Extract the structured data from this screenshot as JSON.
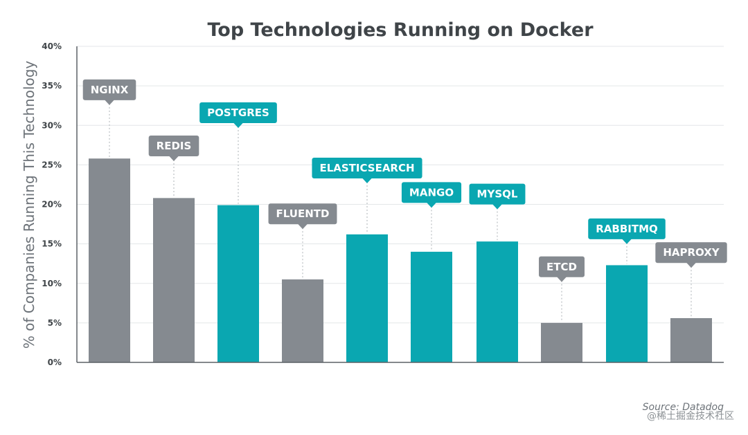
{
  "chart_data": {
    "type": "bar",
    "title": "Top Technologies Running on Docker",
    "ylabel": "% of Companies Running This Technology",
    "xlabel": "",
    "ylim": [
      0,
      40
    ],
    "yticks": [
      "0%",
      "5%",
      "10%",
      "15%",
      "20%",
      "25%",
      "30%",
      "35%",
      "40%"
    ],
    "categories": [
      "NGINX",
      "REDIS",
      "POSTGRES",
      "FLUENTD",
      "ELASTICSEARCH",
      "MANGO",
      "MYSQL",
      "ETCD",
      "RABBITMQ",
      "HAPROXY"
    ],
    "values": [
      25.8,
      20.8,
      19.9,
      10.5,
      16.2,
      14.0,
      15.3,
      5.0,
      12.3,
      5.6
    ],
    "label_y": [
      34.5,
      27.4,
      31.6,
      18.8,
      24.6,
      21.5,
      21.3,
      12.1,
      16.9,
      13.9
    ],
    "bar_colors": [
      "#858a90",
      "#858a90",
      "#0aa7b1",
      "#858a90",
      "#0aa7b1",
      "#0aa7b1",
      "#0aa7b1",
      "#858a90",
      "#0aa7b1",
      "#858a90"
    ],
    "grid": true,
    "legend": "none"
  },
  "footer": {
    "source": "Source: Datadog",
    "watermark": "@稀土掘金技术社区"
  }
}
